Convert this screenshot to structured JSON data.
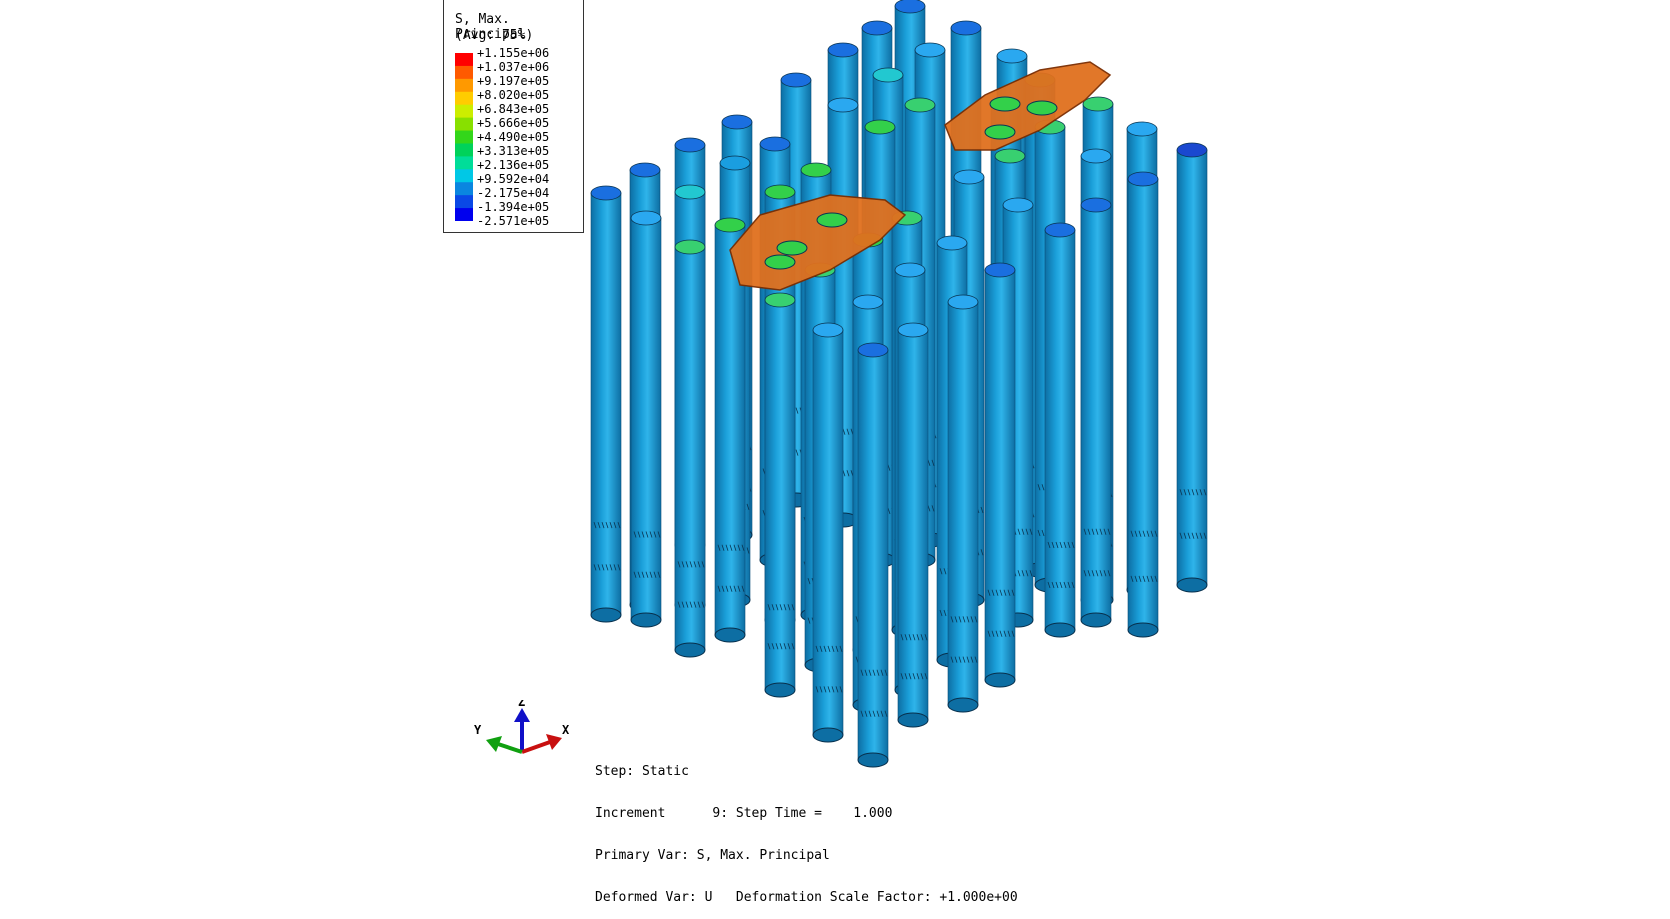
{
  "legend": {
    "title": "S, Max. Principal",
    "subtitle": "(Avg: 75%)",
    "labels": [
      "+1.155e+06",
      "+1.037e+06",
      "+9.197e+05",
      "+8.020e+05",
      "+6.843e+05",
      "+5.666e+05",
      "+4.490e+05",
      "+3.313e+05",
      "+2.136e+05",
      "+9.592e+04",
      "-2.175e+04",
      "-1.394e+05",
      "-2.571e+05"
    ],
    "colors": [
      "#ff0000",
      "#ff5a00",
      "#ff9900",
      "#ffcc00",
      "#ccee00",
      "#88e000",
      "#33d61a",
      "#00d25a",
      "#00dd99",
      "#00c8e6",
      "#0a86e0",
      "#0a48e6",
      "#0000ee"
    ]
  },
  "status": {
    "step": "Step: Static",
    "increment": "Increment      9: Step Time =    1.000",
    "primary_var": "Primary Var: S, Max. Principal",
    "deformed_var": "Deformed Var: U   Deformation Scale Factor: +1.000e+00"
  },
  "triad": {
    "x": "X",
    "y": "Y",
    "z": "Z"
  },
  "colors": {
    "pile_body": "#1a9ed8",
    "pile_shadow": "#0d6ea3",
    "pile_highlight": "#3ec0ee",
    "slab": "#e0701e",
    "slab_edge": "#7a2c00"
  }
}
